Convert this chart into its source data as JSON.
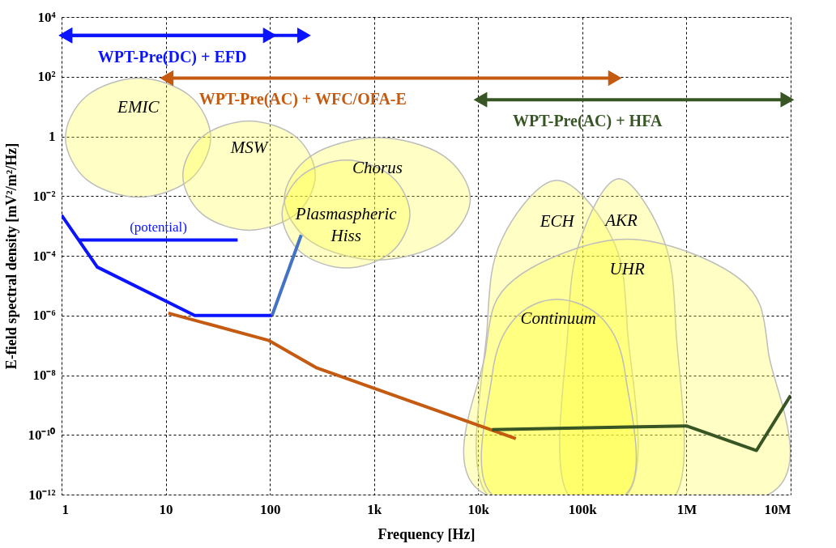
{
  "chart_data": {
    "type": "line",
    "xlabel": "Frequency [Hz]",
    "ylabel": "E-field spectral density [mV²/m²/Hz]",
    "log": "xy",
    "grid": true,
    "legend": false,
    "line_style": "solid",
    "xlim": [
      1,
      10000000
    ],
    "ylim": [
      1e-12,
      10000
    ],
    "xticks": [
      1,
      10,
      100,
      {
        "value": 1000,
        "label": "1k"
      },
      {
        "value": 10000,
        "label": "10k"
      },
      {
        "value": 100000,
        "label": "100k"
      },
      {
        "value": 1000000,
        "label": "1M"
      },
      {
        "value": 10000000,
        "label": "10M"
      }
    ],
    "yticks": [
      {
        "value": 1e-12,
        "label": "10⁻¹²"
      },
      {
        "value": 1e-10,
        "label": "10⁻¹⁰"
      },
      {
        "value": 1e-08,
        "label": "10⁻⁸"
      },
      {
        "value": 1e-06,
        "label": "10⁻⁶"
      },
      {
        "value": 0.0001,
        "label": "10⁻⁴"
      },
      {
        "value": 0.01,
        "label": "10⁻²"
      },
      1,
      {
        "value": 100,
        "label": "10²"
      },
      {
        "value": 10000,
        "label": "10⁴"
      }
    ],
    "series": [
      {
        "name": "EMIC",
        "type": "area",
        "color": "#ffff40",
        "x": [
          27,
          17,
          5.5,
          1.75,
          1.09,
          1.75,
          5.5,
          17
        ],
        "values": [
          0.91,
          23,
          90,
          23,
          0.91,
          0.035,
          0.0092,
          0.035
        ]
      },
      {
        "name": "MSW",
        "type": "area",
        "color": "#ffff40",
        "x": [
          273,
          178,
          63,
          22.4,
          14.6,
          22.4,
          63,
          178
        ],
        "values": [
          0.049,
          0.97,
          3.3,
          0.97,
          0.049,
          0.0025,
          0.00072,
          0.0025
        ]
      },
      {
        "name": "Chorus",
        "type": "area",
        "color": "#ffff40",
        "x": [
          8400,
          4600,
          1080,
          252,
          138,
          252,
          1080,
          4600
        ],
        "values": [
          0.0081,
          0.23,
          0.91,
          0.23,
          0.0081,
          0.00029,
          7.2e-05,
          0.00029
        ]
      },
      {
        "name": "Plasmaspheric Hiss",
        "type": "area",
        "color": "#ffff40",
        "x": [
          2210,
          1460,
          540,
          199,
          131,
          199,
          540,
          1460
        ],
        "values": [
          0.0025,
          0.047,
          0.16,
          0.047,
          0.0025,
          0.00013,
          3.9e-05,
          0.00013
        ]
      },
      {
        "name": "ECH",
        "type": "area",
        "color": "#ffff40",
        "x": [
          12200,
          12200,
          16900,
          57000,
          195000,
          270000,
          270000
        ],
        "values": [
          1e-12,
          4e-07,
          0.00036,
          0.034,
          0.00036,
          4e-07,
          1e-12
        ]
      },
      {
        "name": "AKR",
        "type": "area",
        "color": "#ffff40",
        "x": [
          73000,
          73000,
          96000,
          225000,
          600000,
          790000,
          790000
        ],
        "values": [
          1e-12,
          4e-07,
          0.00036,
          0.038,
          0.00036,
          4e-07,
          1e-12
        ]
      },
      {
        "name": "UHR",
        "type": "area",
        "color": "#ffff40",
        "x": [
          11800,
          11800,
          22100,
          270000,
          3300000,
          6100000,
          6100000
        ],
        "values": [
          1e-12,
          6.2e-08,
          1.6e-05,
          0.00036,
          1.6e-05,
          6.2e-08,
          1e-12
        ]
      },
      {
        "name": "Continuum",
        "type": "area",
        "color": "#ffff40",
        "x": [
          13600,
          13600,
          22100,
          57000,
          158000,
          260000,
          260000
        ],
        "values": [
          1e-12,
          9.5e-09,
          7.4e-07,
          3.5e-06,
          7.4e-07,
          9.5e-09,
          1e-12
        ]
      },
      {
        "color": "#0a14ff",
        "x": [
          1,
          2.2,
          19,
          105
        ],
        "values": [
          0.0023,
          4.2e-05,
          1e-06,
          1e-06
        ]
      },
      {
        "color": "#4472c4",
        "x": [
          105,
          200
        ],
        "values": [
          1e-06,
          0.0005
        ]
      },
      {
        "name": "(potential)",
        "color": "#0a14ff",
        "x": [
          1.48,
          49
        ],
        "values": [
          0.00034,
          0.00034
        ]
      },
      {
        "color": "#c55a11",
        "x": [
          10.6,
          98,
          277,
          23000
        ],
        "values": [
          1.2e-06,
          1.45e-07,
          1.8e-08,
          7.5e-11
        ]
      },
      {
        "color": "#375623",
        "x": [
          13600,
          1000000,
          4700000,
          10000000
        ],
        "values": [
          1.5e-10,
          2e-10,
          3e-11,
          2.1e-09
        ]
      },
      {
        "name": "WPT-Pre(DC) + EFD",
        "marker": "triangle",
        "color": "#0a14ff",
        "x": [
          1.09,
          213
        ],
        "values": [
          2400,
          2400
        ]
      },
      {
        "marker": "triangle",
        "color": "#0a14ff",
        "x": [
          1.09,
          100
        ],
        "values": [
          2400,
          2400
        ]
      },
      {
        "name": "WPT-Pre(AC) + WFC/OFA-E",
        "marker": "triangle",
        "color": "#c55a11",
        "x": [
          10.2,
          206000
        ],
        "values": [
          90,
          90
        ]
      },
      {
        "name": "WPT-Pre(AC) + HFA",
        "marker": "triangle",
        "color": "#375623",
        "x": [
          10500,
          9300000
        ],
        "values": [
          17,
          17
        ]
      }
    ]
  }
}
